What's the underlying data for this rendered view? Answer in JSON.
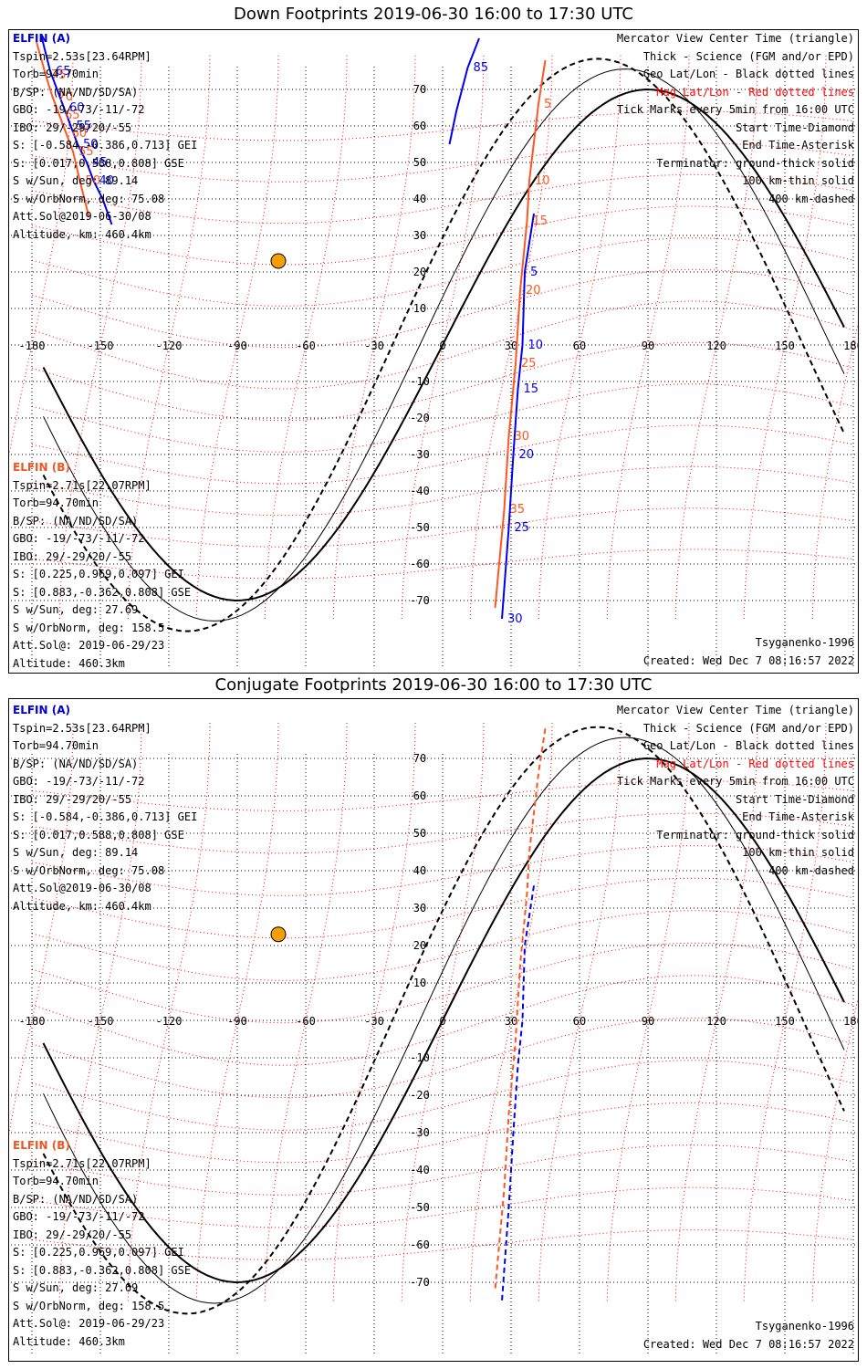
{
  "panels": [
    {
      "title": "Down Footprints 2019-06-30 16:00 to 17:30 UTC",
      "elfin_a": {
        "header": "ELFIN (A)",
        "lines": [
          "Tspin=2.53s[23.64RPM]",
          "Torb=94.70min",
          "B/SP: (NA/ND/SD/SA)",
          "GBO: -19/-73/-11/-72",
          "IBO: 29/-29/20/-55",
          "S: [-0.584,-0.386,0.713] GEI",
          "S: [0.017,0.588,0.808] GSE",
          "S w/Sun, deg: 89.14",
          "S w/OrbNorm, deg: 75.08",
          "Att.Sol@2019-06-30/08",
          "Altitude, km: 460.4km"
        ]
      },
      "elfin_b": {
        "header": "ELFIN (B)",
        "lines": [
          "Tspin=2.71s[22.07RPM]",
          "Torb=94.70min",
          "B/SP: (NA/ND/SD/SA)",
          "GBO: -19/-73/-11/-72",
          "IBO: 29/-29/20/-55",
          "S: [0.225,0.969,0.097] GEI",
          "S: [0.883,-0.362,0.808] GSE",
          "S w/Sun, deg: 27.69",
          "S w/OrbNorm, deg: 158.5",
          "Att.Sol@: 2019-06-29/23",
          "Altitude: 460.3km"
        ]
      },
      "legend": [
        "Mercator View Center Time (triangle)",
        "Thick - Science (FGM and/or EPD)",
        "Geo Lat/Lon - Black dotted lines",
        "Mag Lat/Lon - Red dotted lines",
        "Tick Marks every 5min from 16:00 UTC",
        "Start Time-Diamond",
        "End Time-Asterisk",
        "Terminator: ground-thick solid",
        "100 km-thin solid",
        "400 km-dashed"
      ],
      "model": "Tsyganenko-1996",
      "created": "Created: Wed Dec  7 08:16:57 2022"
    },
    {
      "title": "Conjugate Footprints 2019-06-30 16:00 to 17:30 UTC",
      "elfin_a": {
        "header": "ELFIN (A)",
        "lines": [
          "Tspin=2.53s[23.64RPM]",
          "Torb=94.70min",
          "B/SP: (NA/ND/SD/SA)",
          "GBO: -19/-73/-11/-72",
          "IBO: 29/-29/20/-55",
          "S: [-0.584,-0.386,0.713] GEI",
          "S: [0.017,0.588,0.808] GSE",
          "S w/Sun, deg: 89.14",
          "S w/OrbNorm, deg: 75.08",
          "Att.Sol@2019-06-30/08",
          "Altitude, km: 460.4km"
        ]
      },
      "elfin_b": {
        "header": "ELFIN (B)",
        "lines": [
          "Tspin=2.71s[22.07RPM]",
          "Torb=94.70min",
          "B/SP: (NA/ND/SD/SA)",
          "GBO: -19/-73/-11/-72",
          "IBO: 29/-29/20/-55",
          "S: [0.225,0.969,0.097] GEI",
          "S: [0.883,-0.362,0.808] GSE",
          "S w/Sun, deg: 27.69",
          "S w/OrbNorm, deg: 158.5",
          "Att.Sol@: 2019-06-29/23",
          "Altitude: 460.3km"
        ]
      },
      "legend": [
        "Mercator View Center Time (triangle)",
        "Thick - Science (FGM and/or EPD)",
        "Geo Lat/Lon - Black dotted lines",
        "Mag Lat/Lon - Red dotted lines",
        "Tick Marks every 5min from 16:00 UTC",
        "Start Time-Diamond",
        "End Time-Asterisk",
        "Terminator: ground-thick solid",
        "100 km-thin solid",
        "400 km-dashed"
      ],
      "model": "Tsyganenko-1996",
      "created": "Created: Wed Dec  7 08:16:57 2022"
    }
  ],
  "axes": {
    "lon_ticks": [
      "-180",
      "-150",
      "-120",
      "-90",
      "-60",
      "-30",
      "0",
      "30",
      "60",
      "90",
      "120",
      "150",
      "180"
    ],
    "lat_ticks": [
      "70",
      "60",
      "50",
      "40",
      "30",
      "20",
      "10",
      "0",
      "-10",
      "-20",
      "-30",
      "-40",
      "-50",
      "-60",
      "-70"
    ]
  },
  "colors": {
    "elfin_a": "#0000ee",
    "elfin_b": "#ff5522",
    "geo_grid": "#000000",
    "mag_grid": "#ff0000",
    "sun": "#f5a000"
  },
  "tracks": {
    "down_a": [
      [
        -176,
        85
      ],
      [
        -172,
        75
      ],
      [
        -166,
        65
      ],
      [
        -163,
        60
      ],
      [
        -160,
        55
      ],
      [
        -156,
        50
      ],
      [
        -153,
        45
      ],
      [
        -149,
        40
      ],
      [
        -145,
        33
      ]
    ],
    "down_a_labels": [
      "65",
      "60",
      "55",
      "50",
      "45",
      "40"
    ],
    "down_a_east": [
      [
        16,
        84
      ],
      [
        11,
        76
      ],
      [
        6,
        64
      ],
      [
        3,
        55
      ]
    ],
    "down_a_east_labels": [
      "85"
    ],
    "down_b": [
      [
        -178,
        83
      ],
      [
        -174,
        74
      ],
      [
        -171,
        68
      ],
      [
        -168,
        63
      ],
      [
        -165,
        58
      ],
      [
        -162,
        53
      ],
      [
        -159,
        45
      ],
      [
        -155,
        35
      ]
    ],
    "down_b_labels": [
      "75",
      "70",
      "65",
      "60",
      "55",
      "50"
    ],
    "down_b_east": [
      [
        45,
        78
      ],
      [
        42,
        66
      ],
      [
        38,
        45
      ],
      [
        37,
        34
      ],
      [
        34,
        15
      ],
      [
        32,
        -5
      ],
      [
        29,
        -25
      ],
      [
        27,
        -45
      ],
      [
        23,
        -72
      ]
    ],
    "down_b_east_labels": [
      "5",
      "10",
      "15",
      "20",
      "25",
      "30",
      "35"
    ],
    "down_a_east2": [
      [
        40,
        36
      ],
      [
        36,
        20
      ],
      [
        35,
        0
      ],
      [
        33,
        -12
      ],
      [
        31,
        -30
      ],
      [
        29,
        -50
      ],
      [
        26,
        -75
      ]
    ],
    "down_a_east2_labels": [
      "5",
      "10",
      "15",
      "20",
      "25",
      "30"
    ]
  }
}
